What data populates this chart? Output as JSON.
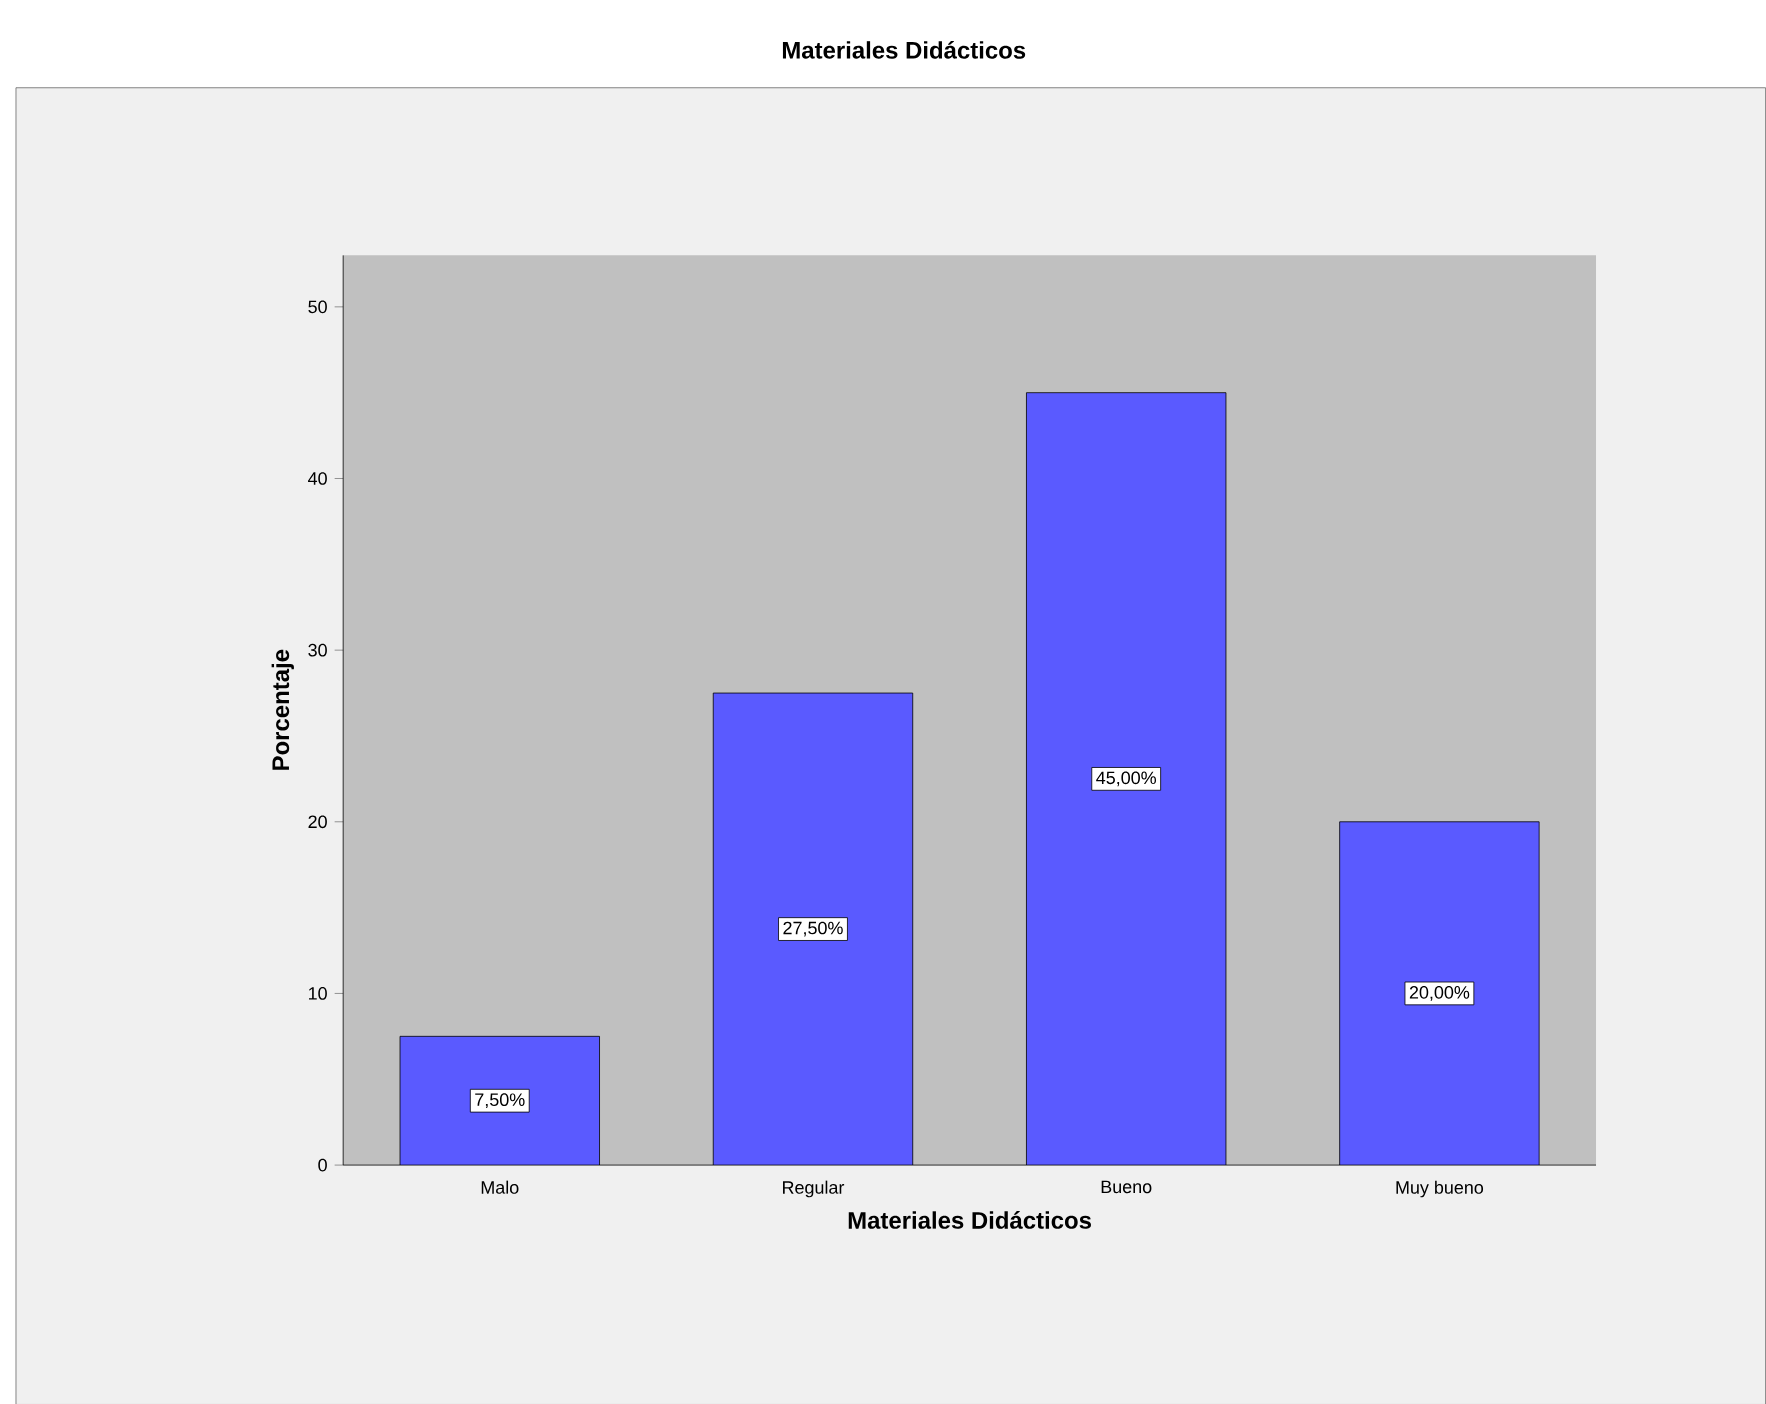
{
  "chart_data": {
    "type": "bar",
    "title": "Materiales Didácticos",
    "xlabel": "Materiales Didácticos",
    "ylabel": "Porcentaje",
    "categories": [
      "Malo",
      "Regular",
      "Bueno",
      "Muy bueno"
    ],
    "values": [
      7.5,
      27.5,
      45,
      20
    ],
    "value_labels": [
      "7,50%",
      "27,50%",
      "45,00%",
      "20,00%"
    ],
    "color": "#5a5aff",
    "ylim": [
      0,
      53
    ],
    "yticks": [
      0,
      10,
      20,
      30,
      40,
      50
    ]
  }
}
